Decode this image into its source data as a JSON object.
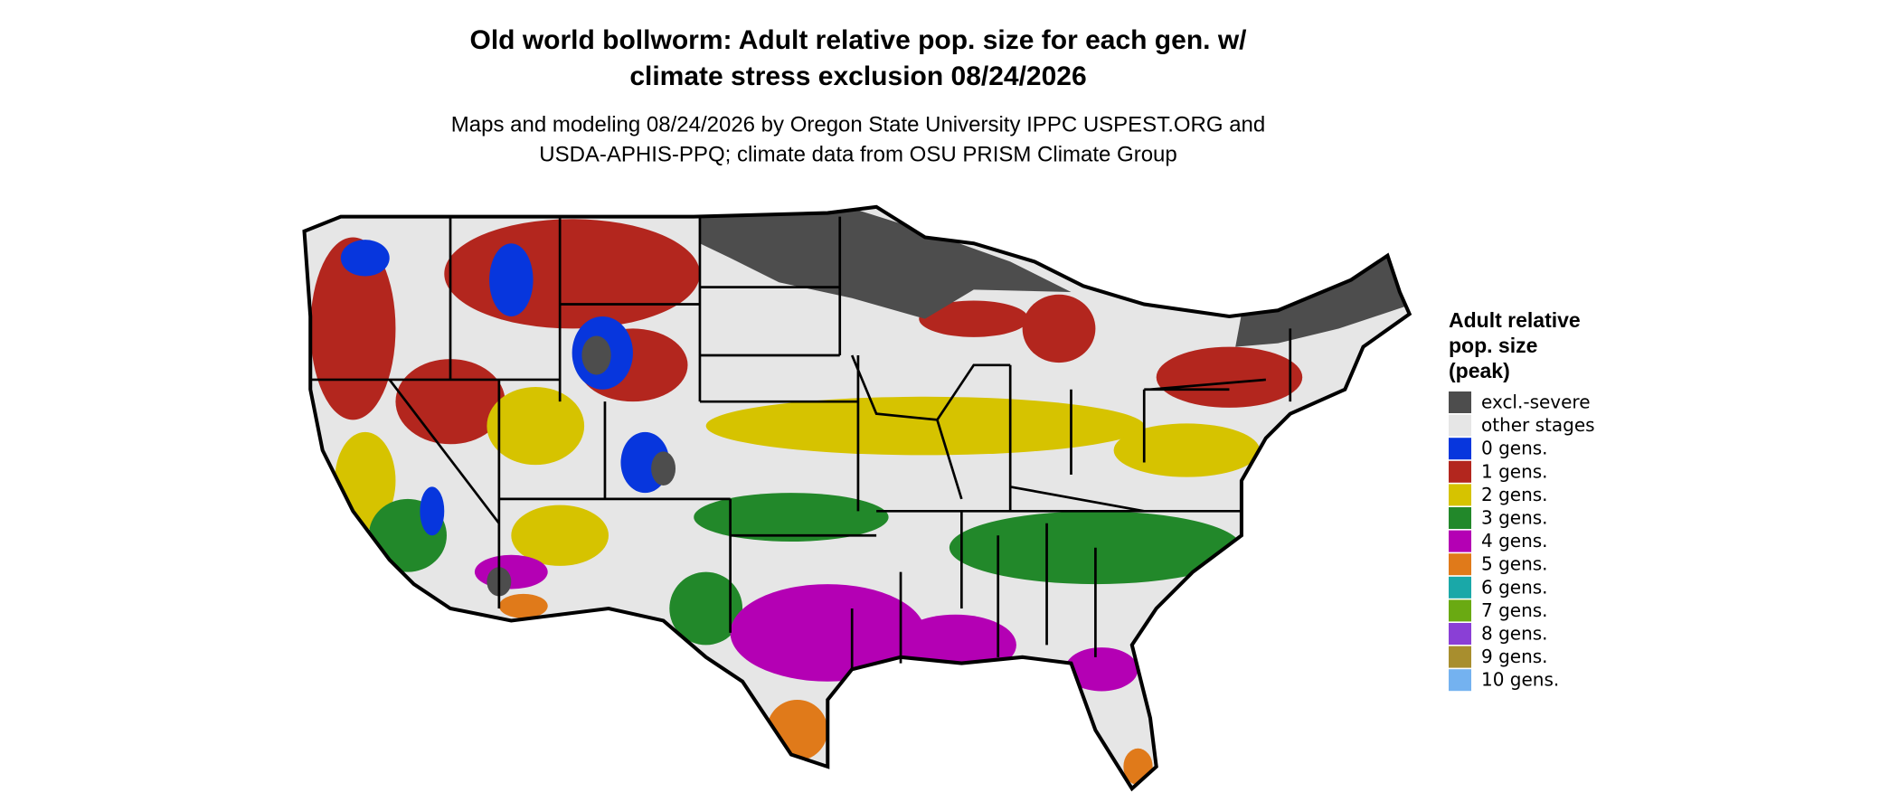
{
  "header": {
    "title_lines": [
      "Old world bollworm: Adult relative pop. size for each gen. w/",
      "climate stress exclusion 08/24/2026"
    ],
    "subtitle_lines": [
      "Maps and modeling 08/24/2026 by Oregon State University IPPC USPEST.ORG and",
      "USDA-APHIS-PPQ; climate data from OSU PRISM Climate Group"
    ]
  },
  "legend": {
    "title_lines": [
      "Adult relative",
      "pop. size",
      "(peak)"
    ],
    "items": [
      {
        "label": "excl.-severe",
        "color": "#4d4d4d"
      },
      {
        "label": "other stages",
        "color": "#e6e6e6"
      },
      {
        "label": "0 gens.",
        "color": "#0736dd"
      },
      {
        "label": "1 gens.",
        "color": "#b3261e"
      },
      {
        "label": "2 gens.",
        "color": "#d6c300"
      },
      {
        "label": "3 gens.",
        "color": "#22882a"
      },
      {
        "label": "4 gens.",
        "color": "#b400b4"
      },
      {
        "label": "5 gens.",
        "color": "#e07a1a"
      },
      {
        "label": "6 gens.",
        "color": "#1aa8a8"
      },
      {
        "label": "7 gens.",
        "color": "#6aaa12"
      },
      {
        "label": "8 gens.",
        "color": "#8a3fd6"
      },
      {
        "label": "9 gens.",
        "color": "#a88e2e"
      },
      {
        "label": "10 gens.",
        "color": "#74b2f0"
      }
    ]
  }
}
